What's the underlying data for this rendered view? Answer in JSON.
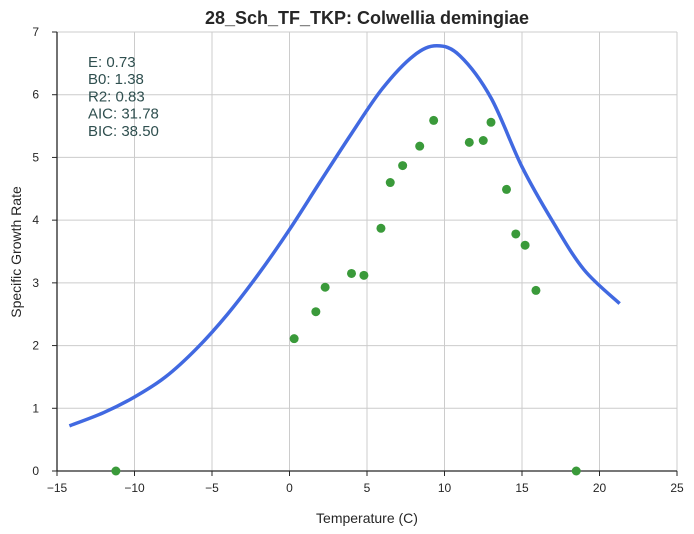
{
  "chart_data": {
    "type": "scatter",
    "title": "28_Sch_TF_TKP: Colwellia demingiae",
    "xlabel": "Temperature (C)",
    "ylabel": "Specific Growth Rate",
    "xlim": [
      -15,
      25
    ],
    "ylim": [
      0,
      7
    ],
    "x_ticks": [
      -15,
      -10,
      -5,
      0,
      5,
      10,
      15,
      20,
      25
    ],
    "x_tick_labels": [
      "−15",
      "−10",
      "−5",
      "0",
      "5",
      "10",
      "15",
      "20",
      "25"
    ],
    "y_ticks": [
      0,
      1,
      2,
      3,
      4,
      5,
      6,
      7
    ],
    "y_tick_labels": [
      "0",
      "1",
      "2",
      "3",
      "4",
      "5",
      "6",
      "7"
    ],
    "grid": true,
    "stats": [
      {
        "label": "E:",
        "value": "0.73"
      },
      {
        "label": "B0:",
        "value": "1.38"
      },
      {
        "label": "R2:",
        "value": "0.83"
      },
      {
        "label": "AIC:",
        "value": "31.78"
      },
      {
        "label": "BIC:",
        "value": "38.50"
      }
    ],
    "points": {
      "color": "#3a9a3a",
      "x": [
        -11.2,
        0.3,
        1.7,
        2.3,
        4.0,
        4.8,
        5.9,
        6.5,
        7.3,
        8.4,
        9.3,
        11.6,
        12.5,
        13.0,
        14.0,
        14.6,
        15.2,
        15.9,
        18.5
      ],
      "y": [
        0.0,
        2.11,
        2.54,
        2.93,
        3.15,
        3.12,
        3.87,
        4.6,
        4.87,
        5.18,
        5.59,
        5.24,
        5.27,
        5.56,
        4.49,
        3.78,
        3.6,
        2.88,
        0.0
      ]
    },
    "fit": {
      "color": "#4169e1",
      "x": [
        -14.2,
        -12,
        -10,
        -8,
        -6,
        -4,
        -2,
        0,
        2,
        4,
        6,
        8,
        9.5,
        11,
        13,
        15,
        17,
        19,
        21.3
      ],
      "y": [
        0.72,
        0.93,
        1.18,
        1.5,
        1.95,
        2.5,
        3.14,
        3.85,
        4.62,
        5.38,
        6.1,
        6.62,
        6.78,
        6.62,
        5.95,
        4.85,
        3.97,
        3.21,
        2.67
      ]
    }
  }
}
